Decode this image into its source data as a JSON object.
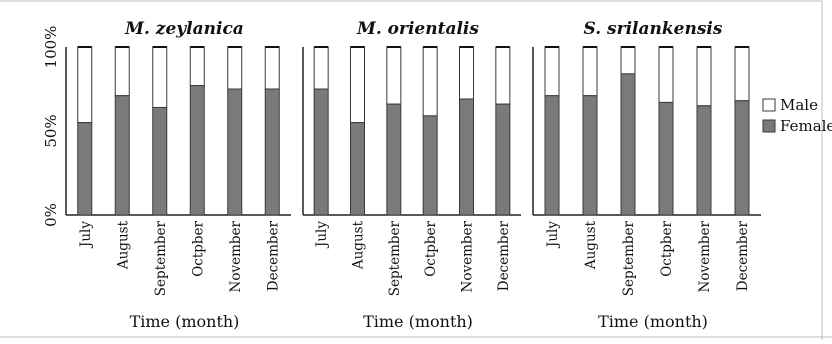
{
  "chart_data": {
    "type": "bar",
    "stacked": true,
    "percent": true,
    "y_ticks": [
      "0%",
      "50%",
      "100%"
    ],
    "ylim": [
      0,
      100
    ],
    "legend": {
      "position": "right",
      "entries": [
        {
          "name": "Male",
          "color": "#ffffff"
        },
        {
          "name": "Female",
          "color": "#7a7a7a"
        }
      ]
    },
    "panels": [
      {
        "title": "M. zeylanica",
        "xlabel": "Time (month)",
        "categories": [
          "July",
          "August",
          "September",
          "Octpber",
          "November",
          "December"
        ],
        "series": [
          {
            "name": "Female",
            "values": [
              55,
              71,
              64,
              77,
              75,
              75
            ]
          },
          {
            "name": "Male",
            "values": [
              45,
              29,
              36,
              23,
              25,
              25
            ]
          }
        ]
      },
      {
        "title": "M. orientalis",
        "xlabel": "Time (month)",
        "categories": [
          "July",
          "August",
          "September",
          "Octpber",
          "November",
          "December"
        ],
        "series": [
          {
            "name": "Female",
            "values": [
              75,
              55,
              66,
              59,
              69,
              66
            ]
          },
          {
            "name": "Male",
            "values": [
              25,
              45,
              34,
              41,
              31,
              34
            ]
          }
        ]
      },
      {
        "title": "S. srilankensis",
        "xlabel": "Time (month)",
        "categories": [
          "July",
          "August",
          "September",
          "Octpber",
          "November",
          "December"
        ],
        "series": [
          {
            "name": "Female",
            "values": [
              71,
              71,
              84,
              67,
              65,
              68
            ]
          },
          {
            "name": "Male",
            "values": [
              29,
              29,
              16,
              33,
              35,
              32
            ]
          }
        ]
      }
    ]
  },
  "colors": {
    "female": "#7a7a7a",
    "male": "#ffffff",
    "bar_outline": "#3a3a3a",
    "axis": "#222222"
  }
}
